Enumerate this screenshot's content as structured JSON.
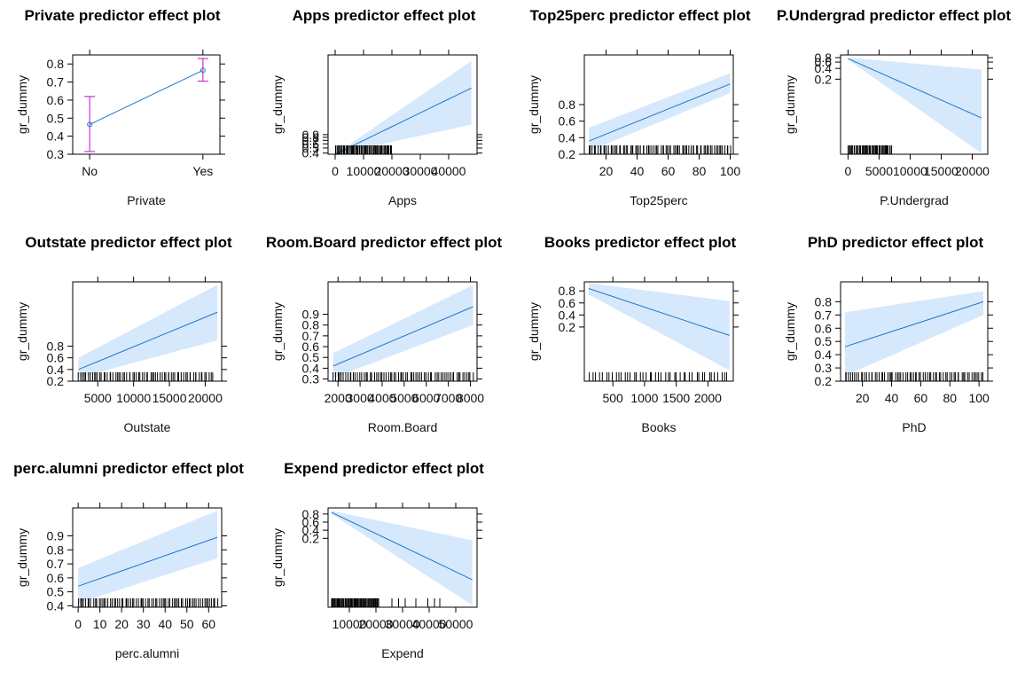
{
  "chart_data": [
    {
      "type": "line",
      "title": "Private predictor effect plot",
      "xlabel": "Private",
      "ylabel": "gr_dummy",
      "categorical": true,
      "categories": [
        "No",
        "Yes"
      ],
      "xlim": [
        0.85,
        2.15
      ],
      "ylim": [
        0.3,
        0.85
      ],
      "yticks": [
        0.3,
        0.4,
        0.5,
        0.6,
        0.7,
        0.8
      ],
      "ytick_labels": [
        "0.3",
        "0.4",
        "0.5",
        "0.6",
        "0.7",
        "0.8"
      ],
      "fit": [
        [
          1,
          0.465
        ],
        [
          2,
          0.765
        ]
      ],
      "errorbars": [
        {
          "x": 1,
          "lower": 0.315,
          "upper": 0.62
        },
        {
          "x": 2,
          "lower": 0.705,
          "upper": 0.83
        }
      ]
    },
    {
      "type": "line",
      "title": "Apps predictor effect plot",
      "xlabel": "Apps",
      "ylabel": "gr_dummy",
      "xlim": [
        -2500,
        50000
      ],
      "ylim": [
        0.38,
        30
      ],
      "ylog": true,
      "xticks": [
        0,
        10000,
        20000,
        30000,
        40000
      ],
      "xtick_labels": [
        "0",
        "10000",
        "20000",
        "30000",
        "40000"
      ],
      "yticks": [
        0.4,
        0.5,
        0.6,
        0.7,
        0.8,
        0.9
      ],
      "ytick_labels": [
        "0.4",
        "0.5",
        "0.6",
        "0.7",
        "0.8",
        "0.9"
      ],
      "fit": [
        [
          0,
          0.38
        ],
        [
          48000,
          7.0
        ]
      ],
      "band": {
        "x": [
          0,
          48000
        ],
        "lower": [
          0.38,
          1.4
        ],
        "upper": [
          0.38,
          23
        ]
      },
      "rug_range": [
        0,
        20000
      ],
      "rug_count": 60
    },
    {
      "type": "line",
      "title": "Top25perc predictor effect plot",
      "xlabel": "Top25perc",
      "ylabel": "gr_dummy",
      "xlim": [
        6,
        102
      ],
      "ylim": [
        0.2,
        1.4
      ],
      "xticks": [
        20,
        40,
        60,
        80,
        100
      ],
      "xtick_labels": [
        "20",
        "40",
        "60",
        "80",
        "100"
      ],
      "yticks": [
        0.2,
        0.4,
        0.6,
        0.8
      ],
      "ytick_labels": [
        "0.2",
        "0.4",
        "0.6",
        "0.8"
      ],
      "fit": [
        [
          9,
          0.36
        ],
        [
          100,
          1.05
        ]
      ],
      "band": {
        "x": [
          9,
          100
        ],
        "lower": [
          0.24,
          0.94
        ],
        "upper": [
          0.52,
          1.18
        ]
      },
      "rug_range": [
        9,
        100
      ],
      "rug_count": 80
    },
    {
      "type": "line",
      "title": "P.Undergrad predictor effect plot",
      "xlabel": "P.Undergrad",
      "ylabel": "gr_dummy",
      "xlim": [
        -1200,
        22500
      ],
      "ylim": [
        0.0016,
        0.95
      ],
      "ylog": true,
      "xticks": [
        0,
        5000,
        10000,
        15000,
        20000
      ],
      "xtick_labels": [
        "0",
        "5000",
        "10000",
        "15000",
        "20000"
      ],
      "yticks": [
        0.2,
        0.4,
        0.6,
        0.8
      ],
      "ytick_labels": [
        "0.2",
        "0.4",
        "0.6",
        "0.8"
      ],
      "fit": [
        [
          0,
          0.75
        ],
        [
          21500,
          0.0165
        ]
      ],
      "band": {
        "x": [
          0,
          21500
        ],
        "lower": [
          0.7,
          0.0017
        ],
        "upper": [
          0.8,
          0.37
        ]
      },
      "rug_range": [
        0,
        7000
      ],
      "rug_count": 45
    },
    {
      "type": "line",
      "title": "Outstate predictor effect plot",
      "xlabel": "Outstate",
      "ylabel": "gr_dummy",
      "xlim": [
        1500,
        22300
      ],
      "ylim": [
        0.2,
        1.9
      ],
      "xticks": [
        5000,
        10000,
        15000,
        20000
      ],
      "xtick_labels": [
        "5000",
        "10000",
        "15000",
        "20000"
      ],
      "yticks": [
        0.2,
        0.4,
        0.6,
        0.8
      ],
      "ytick_labels": [
        "0.2",
        "0.4",
        "0.6",
        "0.8"
      ],
      "fit": [
        [
          2300,
          0.4
        ],
        [
          21700,
          1.38
        ]
      ],
      "band": {
        "x": [
          2300,
          21700
        ],
        "lower": [
          0.26,
          0.9
        ],
        "upper": [
          0.6,
          1.85
        ]
      },
      "rug_range": [
        2300,
        21000
      ],
      "rug_count": 70
    },
    {
      "type": "line",
      "title": "Room.Board predictor effect plot",
      "xlabel": "Room.Board",
      "ylabel": "gr_dummy",
      "xlim": [
        1550,
        8300
      ],
      "ylim": [
        0.28,
        1.2
      ],
      "xticks": [
        2000,
        3000,
        4000,
        5000,
        6000,
        7000,
        8000
      ],
      "xtick_labels": [
        "2000",
        "3000",
        "4000",
        "5000",
        "6000",
        "7000",
        "8000"
      ],
      "yticks": [
        0.3,
        0.4,
        0.5,
        0.6,
        0.7,
        0.8,
        0.9
      ],
      "ytick_labels": [
        "0.3",
        "0.4",
        "0.5",
        "0.6",
        "0.7",
        "0.8",
        "0.9"
      ],
      "fit": [
        [
          1780,
          0.42
        ],
        [
          8120,
          0.97
        ]
      ],
      "band": {
        "x": [
          1780,
          8120
        ],
        "lower": [
          0.31,
          0.8
        ],
        "upper": [
          0.54,
          1.17
        ]
      },
      "rug_range": [
        1800,
        8100
      ],
      "rug_count": 70
    },
    {
      "type": "line",
      "title": "Books predictor effect plot",
      "xlabel": "Books",
      "ylabel": "gr_dummy",
      "xlim": [
        50,
        2400
      ],
      "ylim": [
        -0.7,
        0.95
      ],
      "xticks": [
        500,
        1000,
        1500,
        2000
      ],
      "xtick_labels": [
        "500",
        "1000",
        "1500",
        "2000"
      ],
      "yticks": [
        0.2,
        0.4,
        0.6,
        0.8
      ],
      "ytick_labels": [
        "0.2",
        "0.4",
        "0.6",
        "0.8"
      ],
      "fit": [
        [
          120,
          0.84
        ],
        [
          2340,
          0.06
        ]
      ],
      "band": {
        "x": [
          120,
          2340
        ],
        "lower": [
          0.74,
          -0.52
        ],
        "upper": [
          0.93,
          0.63
        ]
      },
      "rug_range": [
        150,
        2300
      ],
      "rug_count": 45
    },
    {
      "type": "line",
      "title": "PhD predictor effect plot",
      "xlabel": "PhD",
      "ylabel": "gr_dummy",
      "xlim": [
        5,
        106
      ],
      "ylim": [
        0.2,
        0.95
      ],
      "xticks": [
        20,
        40,
        60,
        80,
        100
      ],
      "xtick_labels": [
        "20",
        "40",
        "60",
        "80",
        "100"
      ],
      "yticks": [
        0.2,
        0.3,
        0.4,
        0.5,
        0.6,
        0.7,
        0.8
      ],
      "ytick_labels": [
        "0.2",
        "0.3",
        "0.4",
        "0.5",
        "0.6",
        "0.7",
        "0.8"
      ],
      "fit": [
        [
          8,
          0.46
        ],
        [
          103,
          0.8
        ]
      ],
      "band": {
        "x": [
          8,
          103
        ],
        "lower": [
          0.24,
          0.7
        ],
        "upper": [
          0.72,
          0.88
        ]
      },
      "rug_range": [
        8,
        103
      ],
      "rug_count": 70
    },
    {
      "type": "line",
      "title": "perc.alumni predictor effect plot",
      "xlabel": "perc.alumni",
      "ylabel": "gr_dummy",
      "xlim": [
        -2.5,
        66
      ],
      "ylim": [
        0.39,
        1.1
      ],
      "xticks": [
        0,
        10,
        20,
        30,
        40,
        50,
        60
      ],
      "xtick_labels": [
        "0",
        "10",
        "20",
        "30",
        "40",
        "50",
        "60"
      ],
      "yticks": [
        0.4,
        0.5,
        0.6,
        0.7,
        0.8,
        0.9
      ],
      "ytick_labels": [
        "0.4",
        "0.5",
        "0.6",
        "0.7",
        "0.8",
        "0.9"
      ],
      "fit": [
        [
          0,
          0.54
        ],
        [
          64,
          0.89
        ]
      ],
      "band": {
        "x": [
          0,
          64
        ],
        "lower": [
          0.42,
          0.74
        ],
        "upper": [
          0.67,
          1.08
        ]
      },
      "rug_range": [
        0,
        64
      ],
      "rug_count": 75
    },
    {
      "type": "line",
      "title": "Expend predictor effect plot",
      "xlabel": "Expend",
      "ylabel": "gr_dummy",
      "xlim": [
        2000,
        58000
      ],
      "ylim": [
        -1.5,
        0.95
      ],
      "xticks": [
        10000,
        20000,
        30000,
        40000,
        50000
      ],
      "xtick_labels": [
        "10000",
        "20000",
        "30000",
        "40000",
        "50000"
      ],
      "yticks": [
        0.2,
        0.4,
        0.6,
        0.8
      ],
      "ytick_labels": [
        "0.2",
        "0.4",
        "0.6",
        "0.8"
      ],
      "fit": [
        [
          3300,
          0.84
        ],
        [
          56200,
          -0.82
        ]
      ],
      "band": {
        "x": [
          3300,
          56200
        ],
        "lower": [
          0.8,
          -1.45
        ],
        "upper": [
          0.88,
          0.15
        ]
      },
      "rug_range": [
        3300,
        21000
      ],
      "rug_count": 60,
      "rug_extra": [
        26000,
        28500,
        31000,
        35000,
        39500,
        42000,
        44000
      ]
    }
  ]
}
